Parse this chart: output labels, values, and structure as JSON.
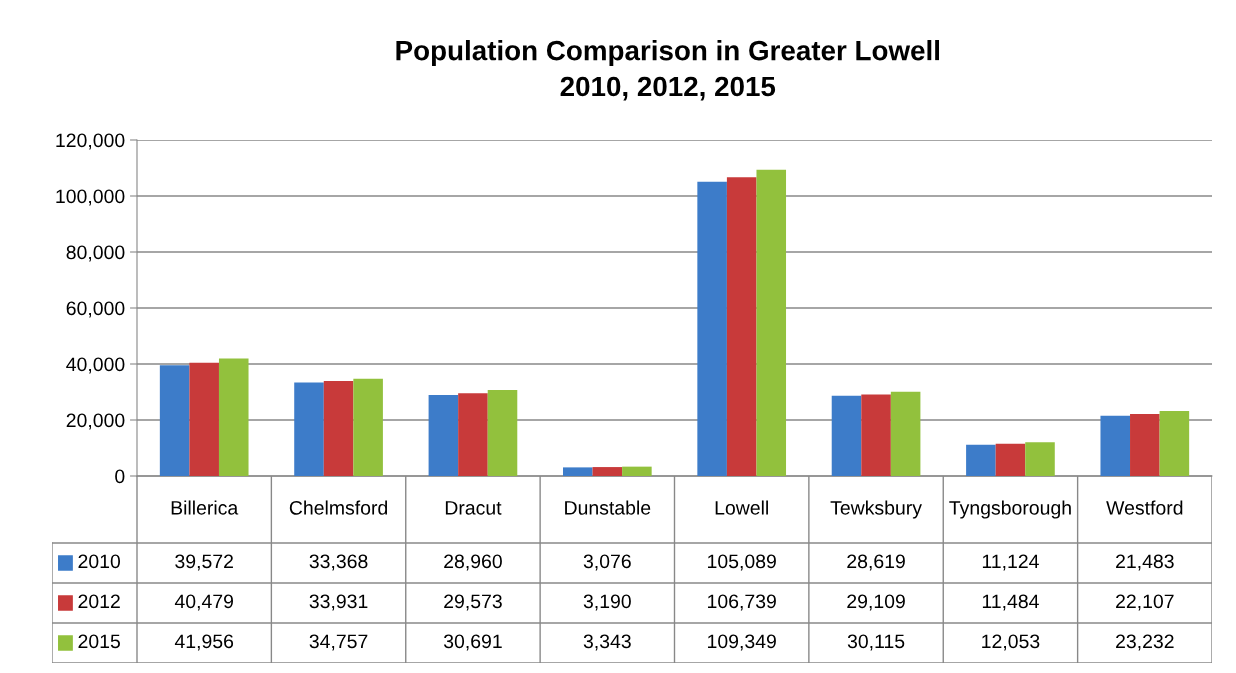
{
  "chart_data": {
    "type": "bar",
    "title": "Population Comparison in Greater Lowell\n2010, 2012, 2015",
    "categories": [
      "Billerica",
      "Chelmsford",
      "Dracut",
      "Dunstable",
      "Lowell",
      "Tewksbury",
      "Tyngsborough",
      "Westford"
    ],
    "series": [
      {
        "name": "2010",
        "color": "#3d7cc9",
        "values": [
          39572,
          33368,
          28960,
          3076,
          105089,
          28619,
          11124,
          21483
        ],
        "value_labels": [
          "39,572",
          "33,368",
          "28,960",
          "3,076",
          "105,089",
          "28,619",
          "11,124",
          "21,483"
        ]
      },
      {
        "name": "2012",
        "color": "#c83a3a",
        "values": [
          40479,
          33931,
          29573,
          3190,
          106739,
          29109,
          11484,
          22107
        ],
        "value_labels": [
          "40,479",
          "33,931",
          "29,573",
          "3,190",
          "106,739",
          "29,109",
          "11,484",
          "22,107"
        ]
      },
      {
        "name": "2015",
        "color": "#92c13d",
        "values": [
          41956,
          34757,
          30691,
          3343,
          109349,
          30115,
          12053,
          23232
        ],
        "value_labels": [
          "41,956",
          "34,757",
          "30,691",
          "3,343",
          "109,349",
          "30,115",
          "12,053",
          "23,232"
        ]
      }
    ],
    "ylim": [
      0,
      120000
    ],
    "yticks": [
      {
        "value": 0,
        "label": "0"
      },
      {
        "value": 20000,
        "label": "20,000"
      },
      {
        "value": 40000,
        "label": "40,000"
      },
      {
        "value": 60000,
        "label": "60,000"
      },
      {
        "value": 80000,
        "label": "80,000"
      },
      {
        "value": 100000,
        "label": "100,000"
      },
      {
        "value": 120000,
        "label": "120,000"
      }
    ],
    "grid": "y",
    "legend": "bottom left"
  }
}
